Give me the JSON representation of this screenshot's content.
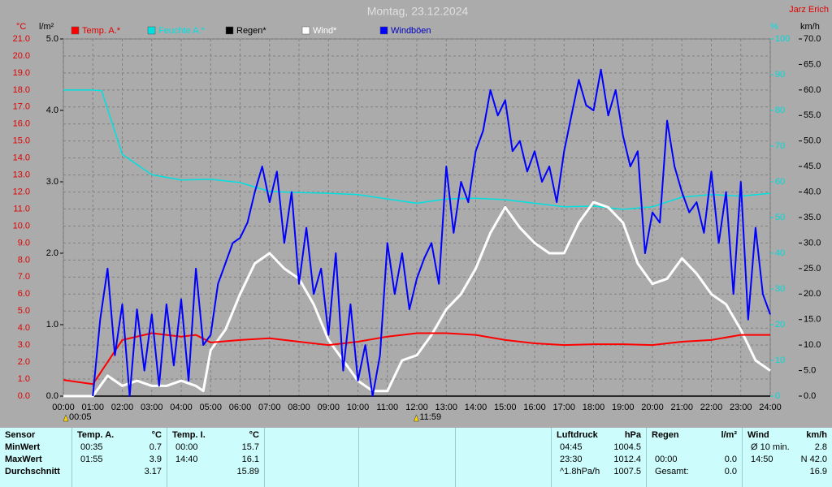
{
  "chart_data": {
    "type": "line",
    "title": "Montag, 23.12.2024",
    "author": "Jarz Erich",
    "axis_units": {
      "y": "°C",
      "y4": "l/m²",
      "y3": "%",
      "y2": "km/h"
    },
    "xlim": [
      0,
      24
    ],
    "xticks": [
      {
        "value": 0,
        "label": "00:00"
      },
      {
        "value": 1,
        "label": "01:00"
      },
      {
        "value": 2,
        "label": "02:00"
      },
      {
        "value": 3,
        "label": "03:00"
      },
      {
        "value": 4,
        "label": "04:00"
      },
      {
        "value": 5,
        "label": "05:00"
      },
      {
        "value": 6,
        "label": "06:00"
      },
      {
        "value": 7,
        "label": "07:00"
      },
      {
        "value": 8,
        "label": "08:00"
      },
      {
        "value": 9,
        "label": "09:00"
      },
      {
        "value": 10,
        "label": "10:00"
      },
      {
        "value": 11,
        "label": "11:00"
      },
      {
        "value": 12,
        "label": "12:00"
      },
      {
        "value": 13,
        "label": "13:00"
      },
      {
        "value": 14,
        "label": "14:00"
      },
      {
        "value": 15,
        "label": "15:00"
      },
      {
        "value": 16,
        "label": "16:00"
      },
      {
        "value": 17,
        "label": "17:00"
      },
      {
        "value": 18,
        "label": "18:00"
      },
      {
        "value": 19,
        "label": "19:00"
      },
      {
        "value": 20,
        "label": "20:00"
      },
      {
        "value": 21,
        "label": "21:00"
      },
      {
        "value": 22,
        "label": "22:00"
      },
      {
        "value": 23,
        "label": "23:00"
      },
      {
        "value": 24,
        "label": "24:00"
      }
    ],
    "ylim": [
      0,
      21
    ],
    "yticks": [
      {
        "value": 0,
        "label": "0.0"
      },
      {
        "value": 1,
        "label": "1.0"
      },
      {
        "value": 2,
        "label": "2.0"
      },
      {
        "value": 3,
        "label": "3.0"
      },
      {
        "value": 4,
        "label": "4.0"
      },
      {
        "value": 5,
        "label": "5.0"
      },
      {
        "value": 6,
        "label": "6.0"
      },
      {
        "value": 7,
        "label": "7.0"
      },
      {
        "value": 8,
        "label": "8.0"
      },
      {
        "value": 9,
        "label": "9.0"
      },
      {
        "value": 10,
        "label": "10.0"
      },
      {
        "value": 11,
        "label": "11.0"
      },
      {
        "value": 12,
        "label": "12.0"
      },
      {
        "value": 13,
        "label": "13.0"
      },
      {
        "value": 14,
        "label": "14.0"
      },
      {
        "value": 15,
        "label": "15.0"
      },
      {
        "value": 16,
        "label": "16.0"
      },
      {
        "value": 17,
        "label": "17.0"
      },
      {
        "value": 18,
        "label": "18.0"
      },
      {
        "value": 19,
        "label": "19.0"
      },
      {
        "value": 20,
        "label": "20.0"
      },
      {
        "value": 21,
        "label": "21.0"
      }
    ],
    "y4lim": [
      0,
      5
    ],
    "y4ticks": [
      {
        "value": 0,
        "label": "0.0"
      },
      {
        "value": 1,
        "label": "1.0"
      },
      {
        "value": 2,
        "label": "2.0"
      },
      {
        "value": 3,
        "label": "3.0"
      },
      {
        "value": 4,
        "label": "4.0"
      },
      {
        "value": 5,
        "label": "5.0"
      }
    ],
    "y3lim": [
      0,
      100
    ],
    "y3ticks": [
      0,
      10,
      20,
      30,
      40,
      50,
      60,
      70,
      80,
      90,
      100
    ],
    "y2lim": [
      0,
      70
    ],
    "y2ticks": [
      {
        "value": 0,
        "label": "0.0"
      },
      {
        "value": 5,
        "label": "5.0"
      },
      {
        "value": 10,
        "label": "10.0"
      },
      {
        "value": 15,
        "label": "15.0"
      },
      {
        "value": 20,
        "label": "20.0"
      },
      {
        "value": 25,
        "label": "25.0"
      },
      {
        "value": 30,
        "label": "30.0"
      },
      {
        "value": 35,
        "label": "35.0"
      },
      {
        "value": 40,
        "label": "40.0"
      },
      {
        "value": 45,
        "label": "45.0"
      },
      {
        "value": 50,
        "label": "50.0"
      },
      {
        "value": 55,
        "label": "55.0"
      },
      {
        "value": 60,
        "label": "60.0"
      },
      {
        "value": 65,
        "label": "65.0"
      },
      {
        "value": 70,
        "label": "70.0"
      }
    ],
    "grid": true,
    "annotations": [
      {
        "x": 0.083,
        "label": "00:05"
      },
      {
        "x": 11.983,
        "label": "11:59"
      }
    ],
    "series": [
      {
        "name": "Temp. A.*",
        "color": "#ff0000",
        "axis": "y",
        "width": 2,
        "x": [
          0,
          1,
          1.5,
          2,
          3,
          4,
          4.5,
          5,
          6,
          7,
          8,
          9,
          10,
          11,
          12,
          13,
          14,
          15,
          16,
          17,
          18,
          19,
          20,
          21,
          22,
          23,
          24
        ],
        "values": [
          0.95,
          0.7,
          2.0,
          3.3,
          3.7,
          3.5,
          3.6,
          3.15,
          3.3,
          3.4,
          3.2,
          3.0,
          3.2,
          3.5,
          3.7,
          3.7,
          3.6,
          3.3,
          3.1,
          3.0,
          3.05,
          3.05,
          3.0,
          3.2,
          3.3,
          3.6,
          3.6
        ]
      },
      {
        "name": "Feuchte A.*",
        "color": "#00e0e0",
        "axis": "y3",
        "width": 1.5,
        "x": [
          0,
          1,
          1.3,
          2,
          3,
          4,
          5,
          6,
          7,
          8,
          9,
          10,
          11,
          12,
          13,
          14,
          15,
          16,
          17,
          18,
          19,
          20,
          21,
          22,
          23,
          24
        ],
        "values": [
          85.7,
          85.7,
          85.5,
          67.7,
          62,
          60.5,
          60.7,
          59.8,
          57.3,
          57,
          56.8,
          56.4,
          55.2,
          54,
          55.2,
          55.4,
          55,
          54,
          53,
          53.2,
          52.3,
          53,
          55.7,
          56.4,
          56,
          56.8
        ]
      },
      {
        "name": "Regen*",
        "color": "#000000",
        "axis": "y4",
        "width": 1.5,
        "x": [
          0,
          24
        ],
        "values": [
          0,
          0
        ]
      },
      {
        "name": "Wind*",
        "color": "#ffffff",
        "axis": "y2",
        "width": 3,
        "x": [
          0,
          0.5,
          1,
          1.5,
          2,
          2.5,
          3,
          3.5,
          4,
          4.5,
          4.75,
          5,
          5.5,
          6,
          6.5,
          7,
          7.5,
          8,
          8.5,
          9,
          9.5,
          10,
          10.5,
          11,
          11.5,
          12,
          12.5,
          13,
          13.5,
          14,
          14.5,
          15,
          15.5,
          16,
          16.5,
          17,
          17.5,
          18,
          18.5,
          19,
          19.5,
          20,
          20.5,
          21,
          21.5,
          22,
          22.5,
          23,
          23.5,
          24
        ],
        "values": [
          0,
          0,
          0,
          4,
          2,
          3,
          2,
          2,
          3,
          2,
          1,
          9,
          13,
          20,
          26,
          28,
          25,
          23,
          18,
          11,
          7,
          3,
          1,
          1,
          7,
          8,
          12,
          17,
          20,
          25,
          32,
          37,
          33,
          30,
          28,
          28,
          34,
          38,
          37,
          34,
          26,
          22,
          23,
          27,
          24,
          20,
          18,
          13,
          7,
          5
        ]
      },
      {
        "name": "Windböen",
        "color": "#0000ff",
        "axis": "y2",
        "width": 2,
        "x": [
          0,
          0.25,
          0.5,
          0.75,
          1,
          1.25,
          1.5,
          1.75,
          2,
          2.25,
          2.5,
          2.75,
          3,
          3.25,
          3.5,
          3.75,
          4,
          4.25,
          4.5,
          4.75,
          5,
          5.25,
          5.5,
          5.75,
          6,
          6.25,
          6.5,
          6.75,
          7,
          7.25,
          7.5,
          7.75,
          8,
          8.25,
          8.5,
          8.75,
          9,
          9.25,
          9.5,
          9.75,
          10,
          10.25,
          10.5,
          10.75,
          11,
          11.25,
          11.5,
          11.75,
          12,
          12.25,
          12.5,
          12.75,
          13,
          13.25,
          13.5,
          13.75,
          14,
          14.25,
          14.5,
          14.75,
          15,
          15.25,
          15.5,
          15.75,
          16,
          16.25,
          16.5,
          16.75,
          17,
          17.25,
          17.5,
          17.75,
          18,
          18.25,
          18.5,
          18.75,
          19,
          19.25,
          19.5,
          19.75,
          20,
          20.25,
          20.5,
          20.75,
          21,
          21.25,
          21.5,
          21.75,
          22,
          22.25,
          22.5,
          22.75,
          23,
          23.25,
          23.5,
          23.75,
          24
        ],
        "values": [
          null,
          null,
          null,
          null,
          0,
          15,
          25,
          8,
          18,
          0,
          17,
          5,
          16,
          2,
          18,
          6,
          19,
          3,
          25,
          10,
          12,
          22,
          26,
          30,
          31,
          34,
          40,
          45,
          38,
          44,
          30,
          40,
          22,
          33,
          20,
          25,
          12,
          28,
          5,
          18,
          3,
          10,
          0,
          8,
          30,
          20,
          28,
          17,
          23,
          27,
          30,
          22,
          45,
          32,
          42,
          38,
          48,
          52,
          60,
          55,
          58,
          48,
          50,
          44,
          48,
          42,
          45,
          38,
          48,
          55,
          62,
          57,
          56,
          64,
          55,
          60,
          51,
          45,
          48,
          28,
          36,
          34,
          54,
          45,
          40,
          36,
          38,
          32,
          44,
          30,
          40,
          20,
          42,
          15,
          33,
          20,
          16
        ]
      }
    ]
  },
  "table": {
    "row_headers": [
      "Sensor",
      "MinWert",
      "MaxWert",
      "Durchschnitt"
    ],
    "groups": [
      {
        "name": "Temp. A.",
        "unit": "°C",
        "rows": [
          [
            "00:35",
            "0.7"
          ],
          [
            "01:55",
            "3.9"
          ],
          [
            null,
            "3.17"
          ]
        ]
      },
      {
        "name": "Temp. I.",
        "unit": "°C",
        "rows": [
          [
            "00:00",
            "15.7"
          ],
          [
            "14:40",
            "16.1"
          ],
          [
            null,
            "15.89"
          ]
        ]
      },
      {
        "name": "Luftdruck",
        "unit": "hPa",
        "rows": [
          [
            "04:45",
            "1004.5"
          ],
          [
            "23:30",
            "1012.4"
          ],
          [
            "^1.8hPa/h",
            "1007.5"
          ]
        ]
      },
      {
        "name": "Regen",
        "unit": "l/m²",
        "rows": [
          [
            null,
            null
          ],
          [
            "00:00",
            "0.0"
          ],
          [
            "Gesamt:",
            "0.0"
          ]
        ]
      },
      {
        "name": "Wind",
        "unit": "km/h",
        "rows": [
          [
            "Ø 10 min.",
            "2.8"
          ],
          [
            "14:50",
            "N 42.0"
          ],
          [
            null,
            "16.9"
          ]
        ]
      }
    ]
  }
}
